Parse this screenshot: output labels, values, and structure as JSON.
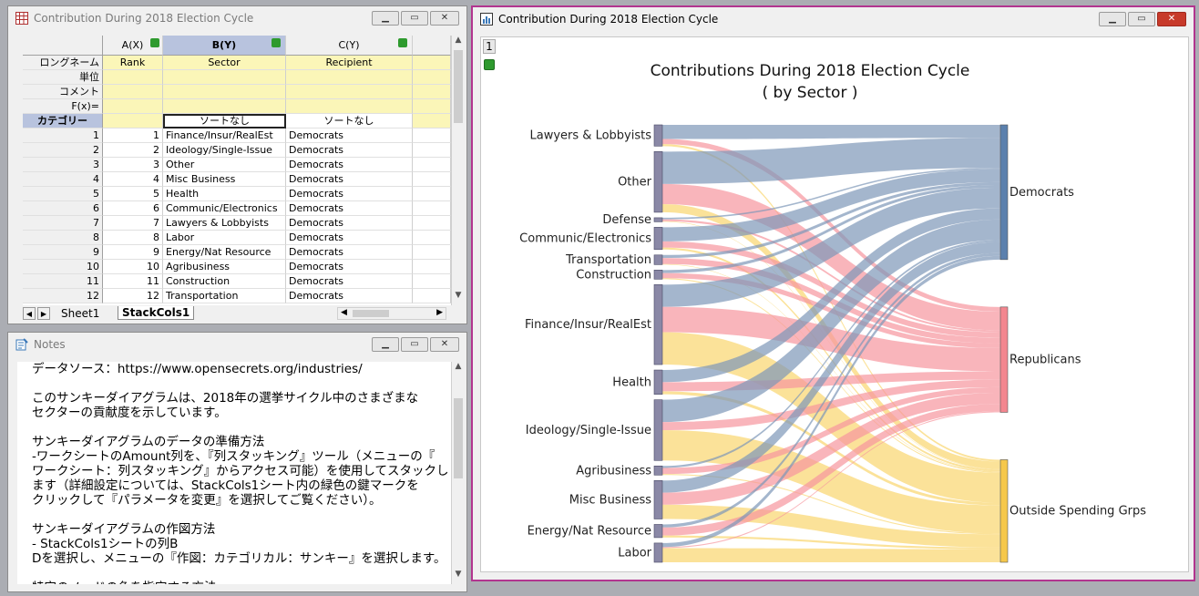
{
  "worksheet": {
    "title": "Contribution During 2018 Election Cycle",
    "columns": [
      {
        "header": "A(X)",
        "long_name": "Rank",
        "category": ""
      },
      {
        "header": "B(Y)",
        "long_name": "Sector",
        "category": "ソートなし"
      },
      {
        "header": "C(Y)",
        "long_name": "Recipient",
        "category": "ソートなし"
      }
    ],
    "row_labels": [
      "ロングネーム",
      "単位",
      "コメント",
      "F(x)=",
      "カテゴリー"
    ],
    "rows": [
      {
        "n": "1",
        "a": "1",
        "b": "Finance/Insur/RealEst",
        "c": "Democrats"
      },
      {
        "n": "2",
        "a": "2",
        "b": "Ideology/Single-Issue",
        "c": "Democrats"
      },
      {
        "n": "3",
        "a": "3",
        "b": "Other",
        "c": "Democrats"
      },
      {
        "n": "4",
        "a": "4",
        "b": "Misc Business",
        "c": "Democrats"
      },
      {
        "n": "5",
        "a": "5",
        "b": "Health",
        "c": "Democrats"
      },
      {
        "n": "6",
        "a": "6",
        "b": "Communic/Electronics",
        "c": "Democrats"
      },
      {
        "n": "7",
        "a": "7",
        "b": "Lawyers & Lobbyists",
        "c": "Democrats"
      },
      {
        "n": "8",
        "a": "8",
        "b": "Labor",
        "c": "Democrats"
      },
      {
        "n": "9",
        "a": "9",
        "b": "Energy/Nat Resource",
        "c": "Democrats"
      },
      {
        "n": "10",
        "a": "10",
        "b": "Agribusiness",
        "c": "Democrats"
      },
      {
        "n": "11",
        "a": "11",
        "b": "Construction",
        "c": "Democrats"
      },
      {
        "n": "12",
        "a": "12",
        "b": "Transportation",
        "c": "Democrats"
      }
    ],
    "sheet_tabs": [
      "Sheet1",
      "StackCols1"
    ]
  },
  "notes": {
    "title": "Notes",
    "lines": [
      "データソース：https://www.opensecrets.org/industries/",
      "",
      "このサンキーダイアグラムは、2018年の選挙サイクル中のさまざまな",
      "セクターの貢献度を示しています。",
      "",
      "サンキーダイアグラムのデータの準備方法",
      "-ワークシートのAmount列を、『列スタッキング』ツール（メニューの『",
      "ワークシート：列スタッキング』からアクセス可能）を使用してスタックし",
      "ます（詳細設定については、StackCols1シート内の緑色の鍵マークを",
      "クリックして『パラメータを変更』を選択してご覧ください）。",
      "",
      "サンキーダイアグラムの作図方法",
      "- StackCols1シートの列B",
      "Dを選択し、メニューの『作図：カテゴリカル：サンキー』を選択します。",
      "",
      "特定のノードの色を指定する方法"
    ]
  },
  "graph": {
    "window_title": "Contribution During 2018 Election Cycle",
    "layer_number": "1",
    "title_line1": "Contributions During 2018 Election Cycle",
    "title_line2": "( by Sector )"
  },
  "colors": {
    "Democrats": "#7d97b8",
    "Republicans": "#f7959e",
    "Outside Spending Grps": "#f9d56e",
    "source_node": "#8a88a6",
    "dem_node": "#5b80ad",
    "rep_node": "#f3868f",
    "out_node": "#f6c84b"
  },
  "chart_data": {
    "type": "sankey",
    "title": "Contributions During 2018 Election Cycle ( by Sector )",
    "sources": [
      "Lawyers & Lobbyists",
      "Other",
      "Defense",
      "Communic/Electronics",
      "Transportation",
      "Construction",
      "Finance/Insur/RealEst",
      "Health",
      "Ideology/Single-Issue",
      "Agribusiness",
      "Misc Business",
      "Energy/Nat Resource",
      "Labor"
    ],
    "targets": [
      "Democrats",
      "Republicans",
      "Outside Spending Grps"
    ],
    "flows": [
      {
        "source": "Lawyers & Lobbyists",
        "Democrats": 14,
        "Republicans": 5,
        "Outside Spending Grps": 2
      },
      {
        "source": "Other",
        "Democrats": 32,
        "Republicans": 20,
        "Outside Spending Grps": 8
      },
      {
        "source": "Defense",
        "Democrats": 1.5,
        "Republicans": 2,
        "Outside Spending Grps": 0.5
      },
      {
        "source": "Communic/Electronics",
        "Democrats": 14,
        "Republicans": 6,
        "Outside Spending Grps": 2
      },
      {
        "source": "Transportation",
        "Democrats": 3,
        "Republicans": 6,
        "Outside Spending Grps": 0.5
      },
      {
        "source": "Construction",
        "Democrats": 3,
        "Republicans": 5,
        "Outside Spending Grps": 1
      },
      {
        "source": "Finance/Insur/RealEst",
        "Democrats": 22,
        "Republicans": 25,
        "Outside Spending Grps": 32
      },
      {
        "source": "Health",
        "Democrats": 12,
        "Republicans": 9,
        "Outside Spending Grps": 3
      },
      {
        "source": "Ideology/Single-Issue",
        "Democrats": 22,
        "Republicans": 8,
        "Outside Spending Grps": 30
      },
      {
        "source": "Agribusiness",
        "Democrats": 2,
        "Republicans": 6,
        "Outside Spending Grps": 1
      },
      {
        "source": "Misc Business",
        "Democrats": 12,
        "Republicans": 12,
        "Outside Spending Grps": 14
      },
      {
        "source": "Energy/Nat Resource",
        "Democrats": 3,
        "Republicans": 8,
        "Outside Spending Grps": 2
      },
      {
        "source": "Labor",
        "Democrats": 4,
        "Republicans": 1,
        "Outside Spending Grps": 14
      }
    ]
  }
}
